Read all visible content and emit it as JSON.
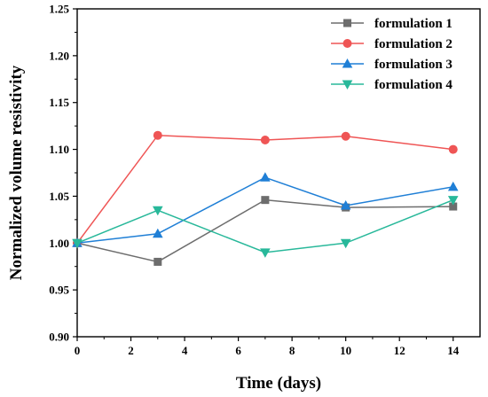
{
  "chart_data": {
    "type": "line",
    "xlabel": "Time (days)",
    "ylabel": "Normalized volume resistivity",
    "xlim": [
      0,
      15
    ],
    "ylim": [
      0.9,
      1.25
    ],
    "xticks": [
      0,
      2,
      4,
      6,
      8,
      10,
      12,
      14
    ],
    "yticks": [
      0.9,
      0.95,
      1.0,
      1.05,
      1.1,
      1.15,
      1.2,
      1.25
    ],
    "ytick_labels": [
      "0.90",
      "0.95",
      "1.00",
      "1.05",
      "1.10",
      "1.15",
      "1.20",
      "1.25"
    ],
    "x": [
      0,
      3,
      7,
      10,
      14
    ],
    "grid": false,
    "legend_position": "top-right",
    "series": [
      {
        "name": "formulation 1",
        "color": "#6d6d6d",
        "marker": "square",
        "values": [
          1.0,
          0.98,
          1.046,
          1.038,
          1.039
        ]
      },
      {
        "name": "formulation 2",
        "color": "#ef5555",
        "marker": "circle",
        "values": [
          1.0,
          1.115,
          1.11,
          1.114,
          1.1
        ]
      },
      {
        "name": "formulation 3",
        "color": "#1f7fd6",
        "marker": "triangle-up",
        "values": [
          1.0,
          1.01,
          1.07,
          1.04,
          1.06
        ]
      },
      {
        "name": "formulation 4",
        "color": "#28b89a",
        "marker": "triangle-down",
        "values": [
          1.0,
          1.035,
          0.99,
          1.0,
          1.046
        ]
      }
    ]
  }
}
